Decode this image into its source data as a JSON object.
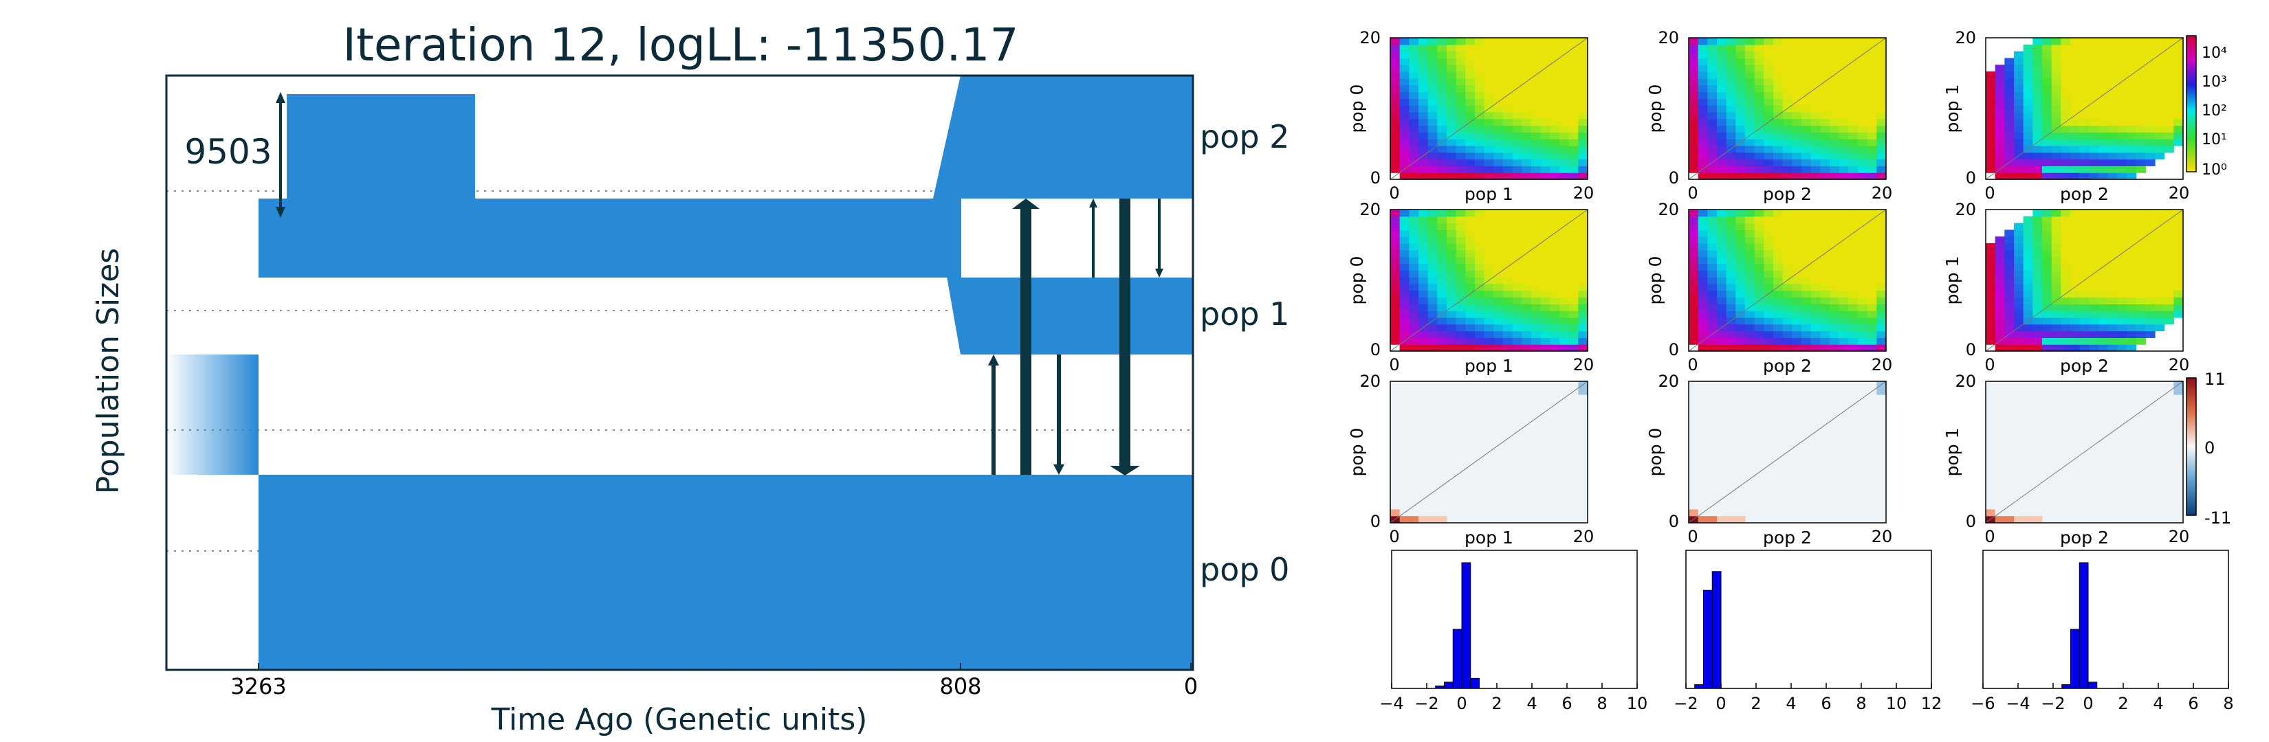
{
  "colors": {
    "population_fill": "#2889d4",
    "arrow": "#0b3540",
    "text": "#0b2a3a",
    "hist_bar": "#0000ee"
  },
  "chart_data": [
    {
      "type": "demographic_model",
      "title": "Iteration 12, logLL:  -11350.17",
      "xlabel": "Time Ago (Genetic units)",
      "ylabel": "Population Sizes",
      "x_ticks": [
        "3263",
        "808",
        "0"
      ],
      "scale_label": "9503",
      "populations": [
        {
          "name": "pop 0"
        },
        {
          "name": "pop 1"
        },
        {
          "name": "pop 2"
        }
      ],
      "events": [
        {
          "time": 3263,
          "description": "split of ancestral population"
        },
        {
          "time": 808,
          "description": "split of pop 1 from pop 2"
        }
      ]
    },
    {
      "type": "heatmap",
      "grid": "3x3 SFS comparison panels",
      "panels": [
        {
          "row": 0,
          "col": 0,
          "ylabel": "pop 0",
          "xlabel": "pop 1",
          "kind": "sfs"
        },
        {
          "row": 0,
          "col": 1,
          "ylabel": "pop 0",
          "xlabel": "pop 2",
          "kind": "sfs"
        },
        {
          "row": 0,
          "col": 2,
          "ylabel": "pop 1",
          "xlabel": "pop 2",
          "kind": "sfs"
        },
        {
          "row": 1,
          "col": 0,
          "ylabel": "pop 0",
          "xlabel": "pop 1",
          "kind": "sfs"
        },
        {
          "row": 1,
          "col": 1,
          "ylabel": "pop 0",
          "xlabel": "pop 2",
          "kind": "sfs"
        },
        {
          "row": 1,
          "col": 2,
          "ylabel": "pop 1",
          "xlabel": "pop 2",
          "kind": "sfs"
        },
        {
          "row": 2,
          "col": 0,
          "ylabel": "pop 0",
          "xlabel": "pop 1",
          "kind": "residual"
        },
        {
          "row": 2,
          "col": 1,
          "ylabel": "pop 0",
          "xlabel": "pop 2",
          "kind": "residual"
        },
        {
          "row": 2,
          "col": 2,
          "ylabel": "pop 1",
          "xlabel": "pop 2",
          "kind": "residual"
        }
      ],
      "axis_ticks": [
        "0",
        "20"
      ],
      "sfs_colorbar_labels": [
        "10⁴",
        "10³",
        "10²",
        "10¹",
        "10⁰"
      ],
      "residual_colorbar_labels": [
        "11",
        "0",
        "-11"
      ]
    },
    {
      "type": "bar",
      "description": "residual histograms",
      "histograms": [
        {
          "x_ticks": [
            "−4",
            "−2",
            "0",
            "2",
            "4",
            "6",
            "8",
            "10"
          ],
          "xlim": [
            -4,
            10
          ],
          "bins": [
            -1.5,
            -1.0,
            -0.5,
            0.0,
            0.5
          ],
          "heights": [
            0.02,
            0.05,
            0.47,
            1.0,
            0.08
          ]
        },
        {
          "x_ticks": [
            "−2",
            "0",
            "2",
            "4",
            "6",
            "8",
            "10",
            "12"
          ],
          "xlim": [
            -2,
            12
          ],
          "bins": [
            -1.5,
            -1.0,
            -0.5
          ],
          "heights": [
            0.03,
            0.78,
            0.93
          ]
        },
        {
          "x_ticks": [
            "−6",
            "−4",
            "−2",
            "0",
            "2",
            "4",
            "6",
            "8"
          ],
          "xlim": [
            -6,
            8
          ],
          "bins": [
            -1.5,
            -1.0,
            -0.5,
            0.0
          ],
          "heights": [
            0.03,
            0.47,
            1.0,
            0.05
          ]
        }
      ]
    }
  ]
}
